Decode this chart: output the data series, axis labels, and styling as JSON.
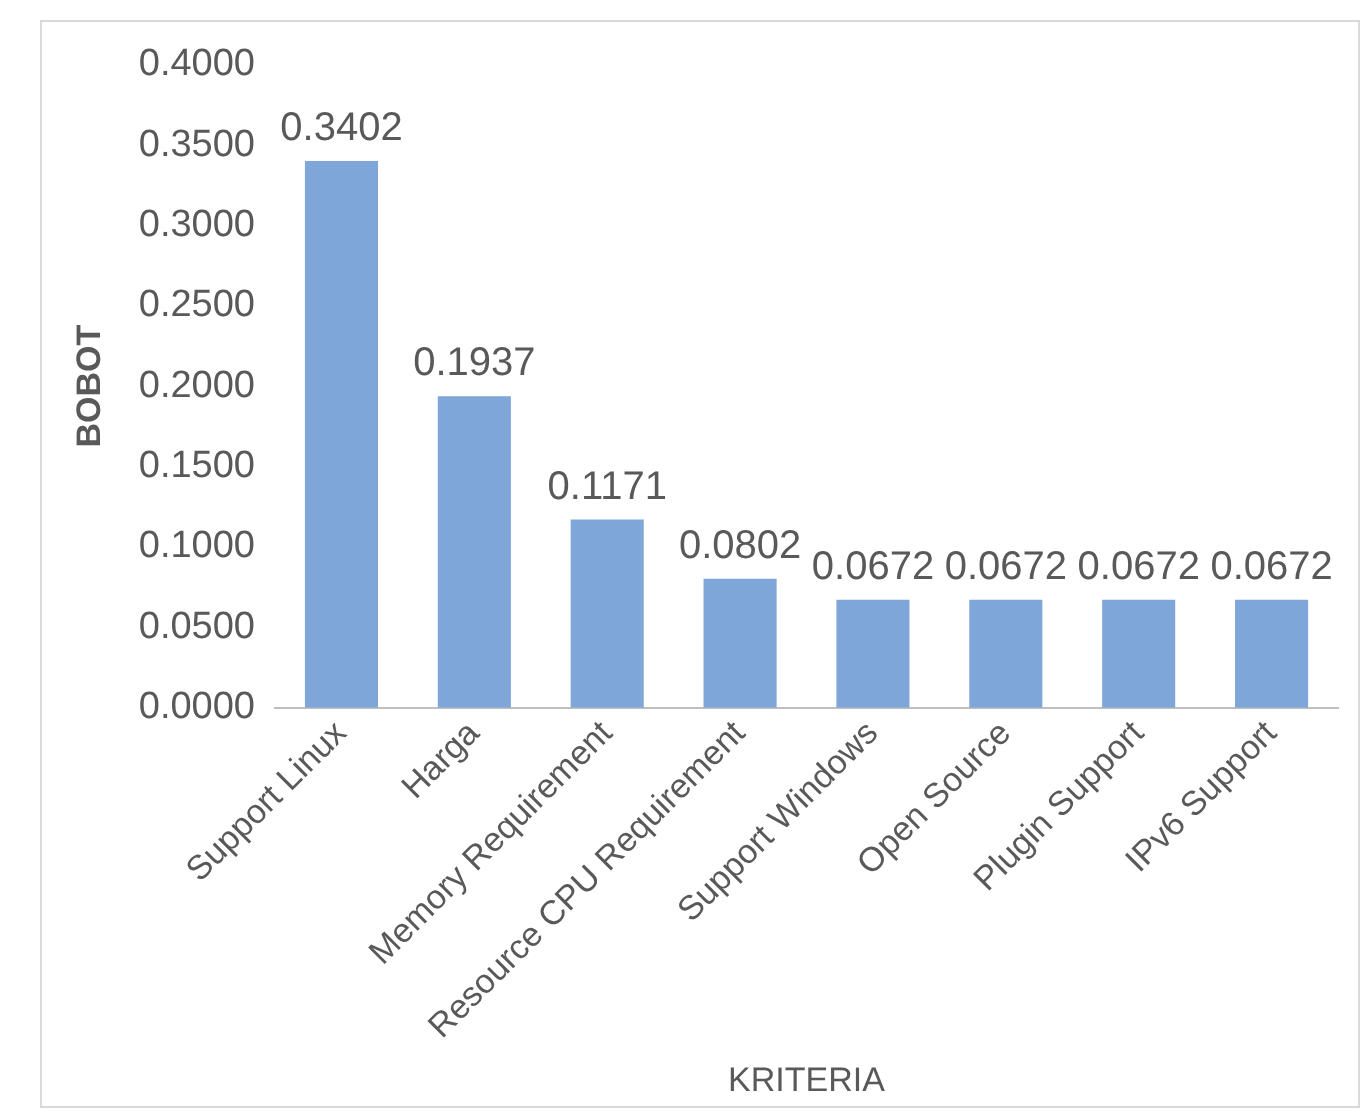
{
  "chart_data": {
    "type": "bar",
    "xlabel": "KRITERIA",
    "ylabel": "BOBOT",
    "categories": [
      "Support Linux",
      "Harga",
      "Memory Requirement",
      "Resource CPU Requirement",
      "Support Windows",
      "Open Source",
      "Plugin Support",
      "IPv6 Support"
    ],
    "values": [
      0.3402,
      0.1937,
      0.1171,
      0.0802,
      0.0672,
      0.0672,
      0.0672,
      0.0672
    ],
    "color": "#7ea6d8",
    "ylim": [
      0,
      0.4
    ],
    "yticks": [
      {
        "value": 0,
        "label": "0.0000"
      },
      {
        "value": 0.05,
        "label": "0.0500"
      },
      {
        "value": 0.1,
        "label": "0.1000"
      },
      {
        "value": 0.15,
        "label": "0.1500"
      },
      {
        "value": 0.2,
        "label": "0.2000"
      },
      {
        "value": 0.25,
        "label": "0.2500"
      },
      {
        "value": 0.3,
        "label": "0.3000"
      },
      {
        "value": 0.35,
        "label": "0.3500"
      },
      {
        "value": 0.4,
        "label": "0.4000"
      }
    ],
    "grid": false,
    "legend": false,
    "data_labels": true
  }
}
